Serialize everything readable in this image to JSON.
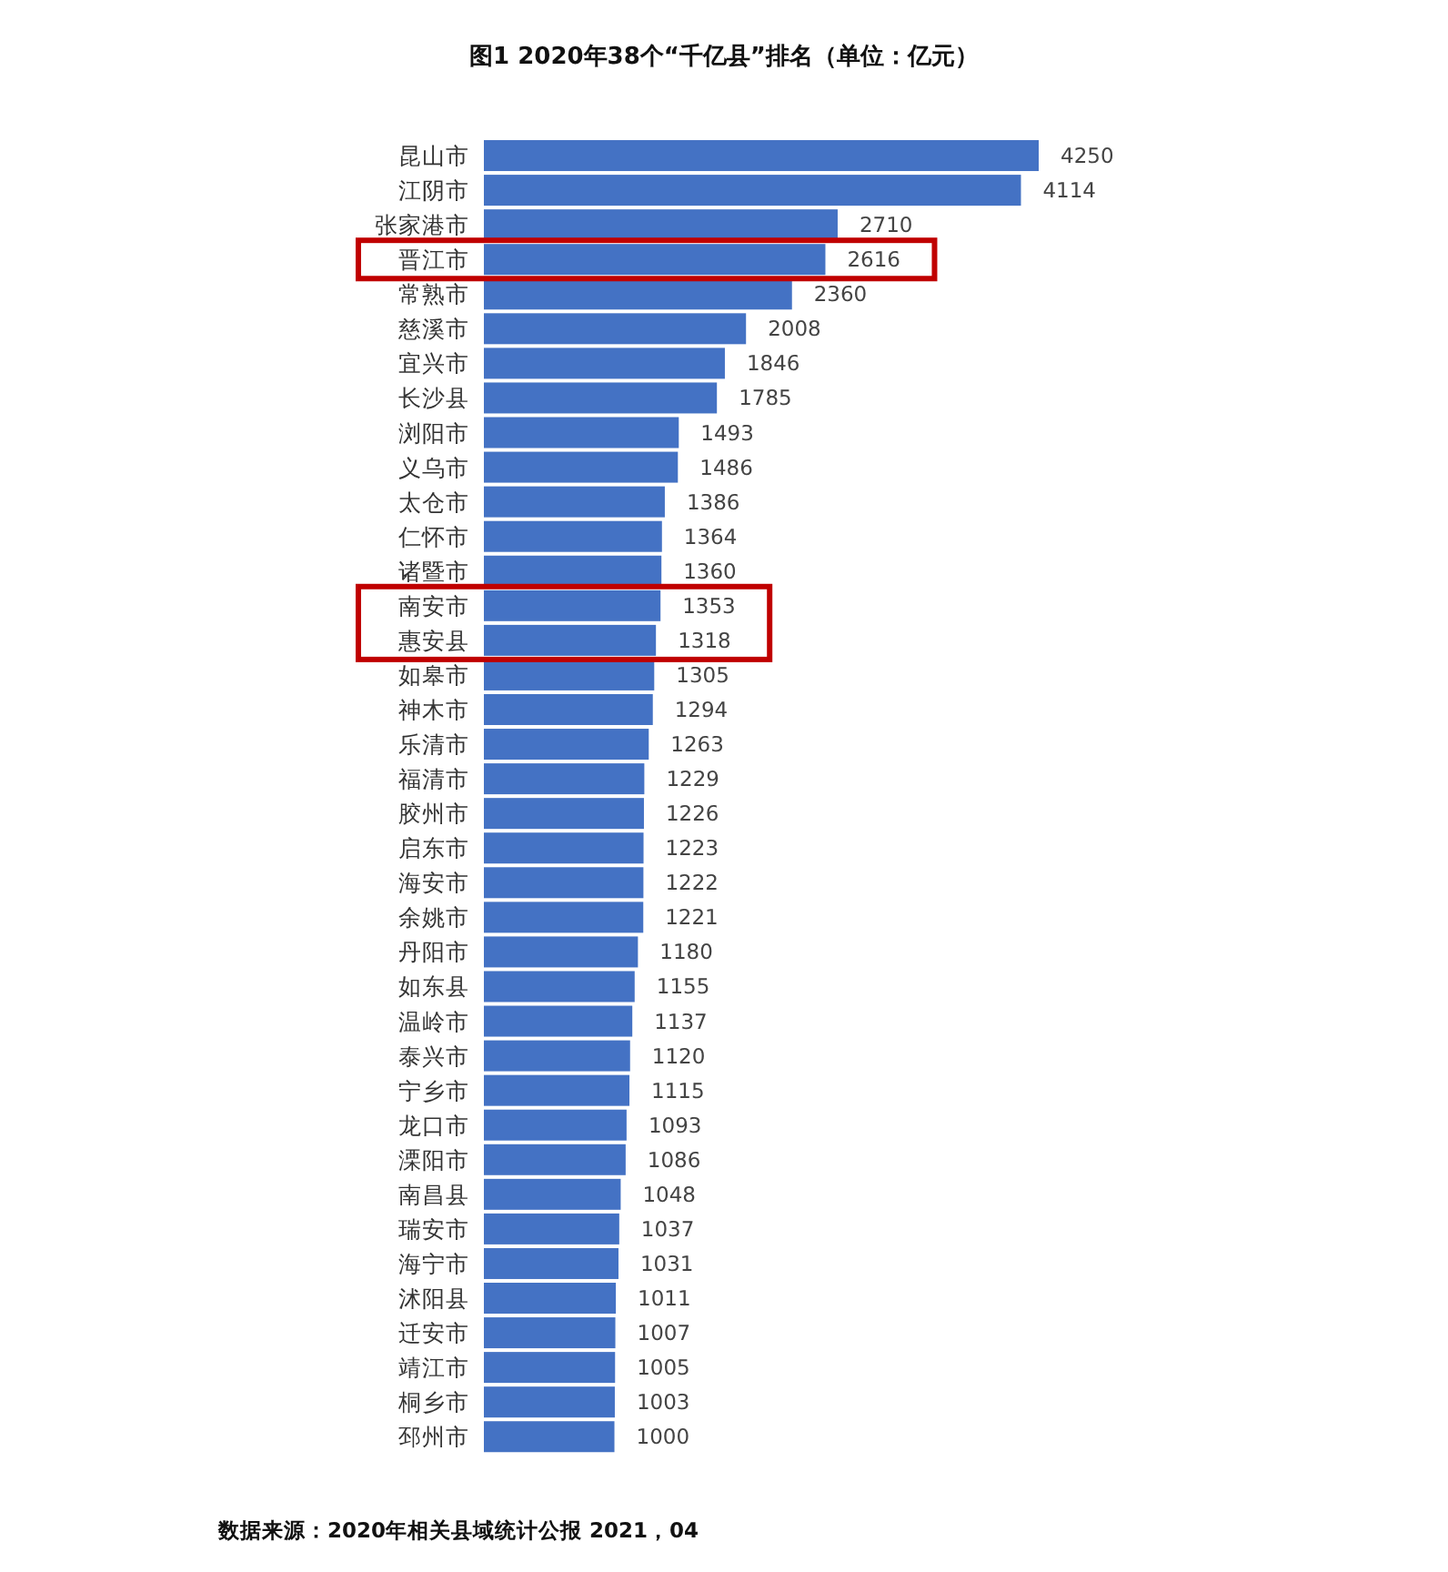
{
  "chart_data": {
    "type": "bar",
    "orientation": "horizontal",
    "title": "图1 2020年38个“千亿县”排名（单位：亿元）",
    "categories": [
      "昆山市",
      "江阴市",
      "张家港市",
      "晋江市",
      "常熟市",
      "慈溪市",
      "宜兴市",
      "长沙县",
      "浏阳市",
      "义乌市",
      "太仓市",
      "仁怀市",
      "诸暨市",
      "南安市",
      "惠安县",
      "如皋市",
      "神木市",
      "乐清市",
      "福清市",
      "胶州市",
      "启东市",
      "海安市",
      "余姚市",
      "丹阳市",
      "如东县",
      "温岭市",
      "泰兴市",
      "宁乡市",
      "龙口市",
      "溧阳市",
      "南昌县",
      "瑞安市",
      "海宁市",
      "沭阳县",
      "迁安市",
      "靖江市",
      "桐乡市",
      "邳州市"
    ],
    "values": [
      4250,
      4114,
      2710,
      2616,
      2360,
      2008,
      1846,
      1785,
      1493,
      1486,
      1386,
      1364,
      1360,
      1353,
      1318,
      1305,
      1294,
      1263,
      1229,
      1226,
      1223,
      1222,
      1221,
      1180,
      1155,
      1137,
      1120,
      1115,
      1093,
      1086,
      1048,
      1037,
      1031,
      1011,
      1007,
      1005,
      1003,
      1000
    ],
    "color": "#4472c4",
    "data_labels": true,
    "annotations": [
      "数据来源：2020年相关县域统计公报 2021，04"
    ]
  }
}
